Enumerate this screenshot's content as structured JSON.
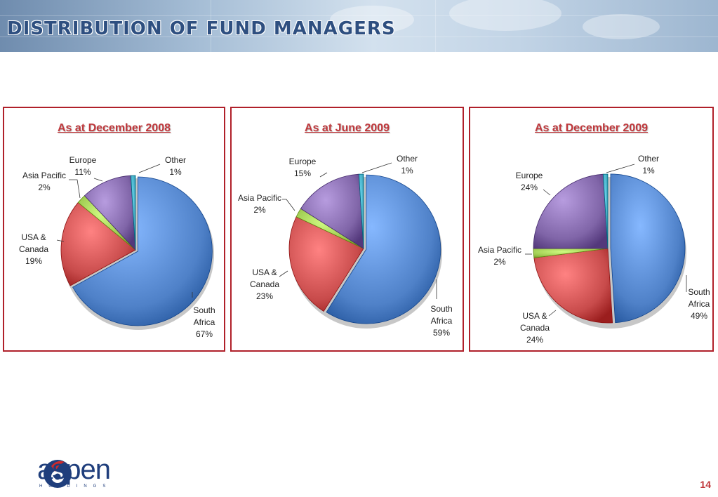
{
  "slide": {
    "title": "DISTRIBUTION OF FUND MANAGERS",
    "page_number": "14",
    "logo_text": "aspen",
    "logo_subtext": "HOLDINGS"
  },
  "colors": {
    "South Africa": "#4f81c8",
    "USA & Canada": "#c84b4b",
    "Asia Pacific": "#98c44a",
    "Europe": "#8065a8",
    "Other": "#3aa4bb",
    "panel_border": "#b0202a",
    "title_red": "#c0383c"
  },
  "chart_data": [
    {
      "type": "pie",
      "title": "As at December 2008",
      "slices": [
        {
          "label": "South Africa",
          "label_lines": [
            "South",
            "Africa"
          ],
          "value": 67,
          "value_label": "67%"
        },
        {
          "label": "USA & Canada",
          "label_lines": [
            "USA &",
            "Canada"
          ],
          "value": 19,
          "value_label": "19%"
        },
        {
          "label": "Asia Pacific",
          "label_lines": [
            "Asia Pacific"
          ],
          "value": 2,
          "value_label": "2%"
        },
        {
          "label": "Europe",
          "label_lines": [
            "Europe"
          ],
          "value": 11,
          "value_label": "11%"
        },
        {
          "label": "Other",
          "label_lines": [
            "Other"
          ],
          "value": 1,
          "value_label": "1%"
        }
      ]
    },
    {
      "type": "pie",
      "title": "As at June 2009",
      "slices": [
        {
          "label": "South Africa",
          "label_lines": [
            "South",
            "Africa"
          ],
          "value": 59,
          "value_label": "59%"
        },
        {
          "label": "USA & Canada",
          "label_lines": [
            "USA &",
            "Canada"
          ],
          "value": 23,
          "value_label": "23%"
        },
        {
          "label": "Asia Pacific",
          "label_lines": [
            "Asia Pacific"
          ],
          "value": 2,
          "value_label": "2%"
        },
        {
          "label": "Europe",
          "label_lines": [
            "Europe"
          ],
          "value": 15,
          "value_label": "15%"
        },
        {
          "label": "Other",
          "label_lines": [
            "Other"
          ],
          "value": 1,
          "value_label": "1%"
        }
      ]
    },
    {
      "type": "pie",
      "title": "As at December 2009",
      "slices": [
        {
          "label": "South Africa",
          "label_lines": [
            "South",
            "Africa"
          ],
          "value": 49,
          "value_label": "49%"
        },
        {
          "label": "USA & Canada",
          "label_lines": [
            "USA &",
            "Canada"
          ],
          "value": 24,
          "value_label": "24%"
        },
        {
          "label": "Asia Pacific",
          "label_lines": [
            "Asia Pacific"
          ],
          "value": 2,
          "value_label": "2%"
        },
        {
          "label": "Europe",
          "label_lines": [
            "Europe"
          ],
          "value": 24,
          "value_label": "24%"
        },
        {
          "label": "Other",
          "label_lines": [
            "Other"
          ],
          "value": 1,
          "value_label": "1%"
        }
      ]
    }
  ]
}
